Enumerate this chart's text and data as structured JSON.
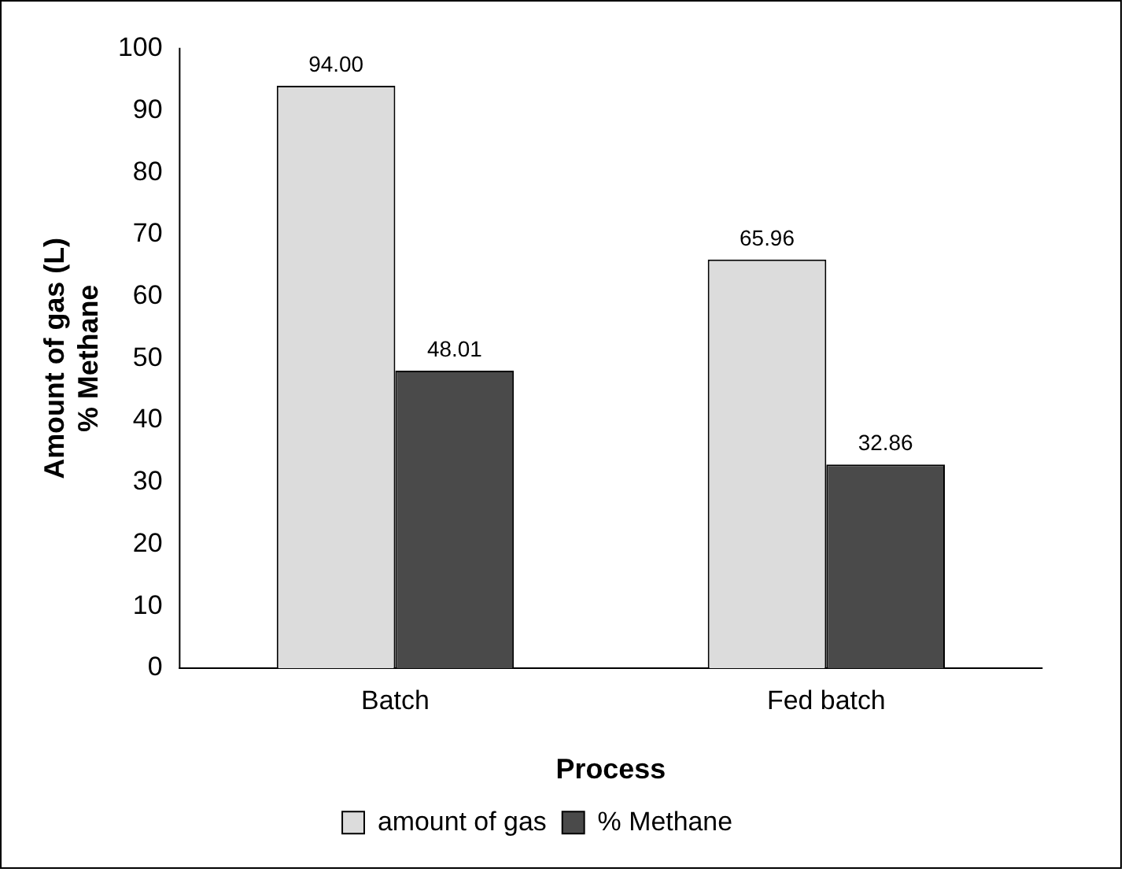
{
  "chart_data": {
    "type": "bar",
    "xlabel": "Process",
    "ylabel": "Amount of gas (L)\n% Methane",
    "categories": [
      "Batch",
      "Fed batch"
    ],
    "series": [
      {
        "name": "amount of gas",
        "color": "#dcdcdc",
        "values": [
          94.0,
          65.96
        ],
        "value_labels": [
          "94.00",
          "65.96"
        ]
      },
      {
        "name": "% Methane",
        "color": "#4a4a4a",
        "values": [
          48.01,
          32.86
        ],
        "value_labels": [
          "48.01",
          "32.86"
        ]
      }
    ],
    "ylim": [
      0,
      100
    ],
    "yticks": [
      0,
      10,
      20,
      30,
      40,
      50,
      60,
      70,
      80,
      90,
      100
    ],
    "grid": false,
    "legend": "bottom"
  }
}
